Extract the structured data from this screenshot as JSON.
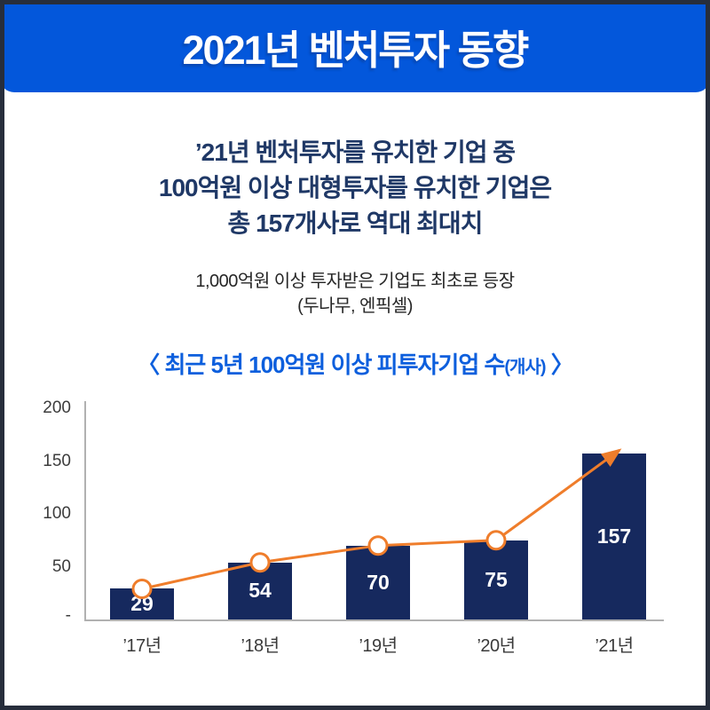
{
  "header": {
    "title": "2021년 벤처투자 동향"
  },
  "statement": {
    "lines": [
      "’21년 벤처투자를 유치한 기업 중",
      "100억원 이상 대형투자를 유치한 기업은",
      "총 157개사로 역대 최대치"
    ]
  },
  "subnote": {
    "lines": [
      "1,000억원 이상 투자받은 기업도 최초로 등장",
      "(두나무, 엔픽셀)"
    ]
  },
  "chart_title": {
    "open": "〈 ",
    "main": "최근 5년 100억원 이상 피투자기업 수",
    "unit": "(개사)",
    "close": " 〉"
  },
  "chart_data": {
    "type": "bar",
    "title": "최근 5년 100억원 이상 피투자기업 수(개사)",
    "categories": [
      "’17년",
      "’18년",
      "’19년",
      "’20년",
      "’21년"
    ],
    "values": [
      29,
      54,
      70,
      75,
      157
    ],
    "xlabel": "",
    "ylabel": "",
    "ylim": [
      0,
      200
    ],
    "yticks": [
      200,
      150,
      100,
      50
    ],
    "ytick_zero_label": "-",
    "grid": false,
    "legend": false,
    "trendline": {
      "style": "line-with-markers-and-arrow",
      "marker_points": [
        29,
        54,
        70,
        75
      ],
      "arrow_target": 157
    }
  },
  "colors": {
    "banner_bg": "#0357db",
    "banner_text": "#ffffff",
    "statement_text": "#1f3866",
    "subnote_text": "#262626",
    "chart_title_text": "#0d5fdd",
    "bar": "#16295e",
    "bar_value_text": "#ffffff",
    "trend_orange": "#ef7d2b",
    "marker_fill": "#ffffff",
    "axis_gray": "#b1b1b1",
    "tick_text": "#3c3c3c",
    "border": "#272e3c"
  }
}
